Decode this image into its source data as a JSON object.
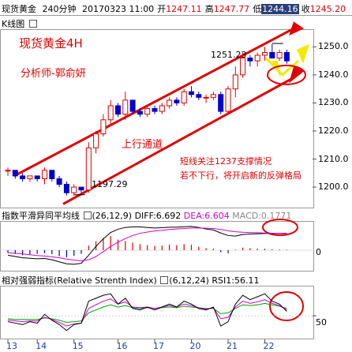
{
  "header": {
    "symbol": "现货黄金",
    "period": "240分钟",
    "datetime": "20170323 11:00",
    "open_label": "开",
    "open": "1247.11",
    "high_label": "高",
    "high": "1247.77",
    "low_label": "低",
    "low": "1244.16",
    "close_label": "收",
    "close": "1245.20"
  },
  "kline": {
    "tab": "K线图",
    "title": "现货黄金4H",
    "author": "分析师-郭俞妍",
    "channel_label": "上行通道",
    "note_line1": "短线关注1237支撑情况",
    "note_line2": "若不下行，将开启新的反弹格局",
    "high_mark": "1251.23",
    "low_mark": "1197.29",
    "price_labels": [
      "1250.0",
      "1240.0",
      "1230.0",
      "1220.0",
      "1210.0",
      "1200.0"
    ]
  },
  "macd": {
    "title": "指数平滑异同平均线",
    "params": "(26,12,9)",
    "diff": "DIFF:6.692",
    "dea": "DEA:6.604",
    "macd": "MACD:0.1771",
    "zero": "0"
  },
  "rsi": {
    "title": "相对强弱指标(Relative Strenth Index)",
    "params": "(6,12,24)",
    "rsi1": "RSI1:56.11",
    "level": "50"
  },
  "dates": [
    "13",
    "14",
    "15",
    "16",
    "17",
    "20",
    "21",
    "22"
  ],
  "colors": {
    "up": "#e00000",
    "down": "#0000c8",
    "dea": "#d000d0"
  },
  "chart_data": {
    "type": "candlestick",
    "title": "现货黄金4H",
    "period": "240分钟",
    "ylim": [
      1193,
      1256
    ],
    "x_dates": [
      "13",
      "14",
      "15",
      "16",
      "17",
      "20",
      "21",
      "22"
    ],
    "candles": [
      [
        1206,
        1207,
        1204,
        1206
      ],
      [
        1206,
        1206,
        1203,
        1204
      ],
      [
        1204,
        1205,
        1202,
        1203
      ],
      [
        1203,
        1204,
        1202,
        1204
      ],
      [
        1204,
        1204,
        1202,
        1203
      ],
      [
        1203,
        1207,
        1201,
        1206
      ],
      [
        1206,
        1206,
        1202,
        1203
      ],
      [
        1203,
        1204,
        1200,
        1201
      ],
      [
        1201,
        1202,
        1197,
        1198
      ],
      [
        1198,
        1201,
        1197,
        1200
      ],
      [
        1200,
        1200,
        1198,
        1199
      ],
      [
        1199,
        1216,
        1198,
        1214
      ],
      [
        1214,
        1220,
        1212,
        1219
      ],
      [
        1219,
        1226,
        1218,
        1224
      ],
      [
        1224,
        1231,
        1222,
        1229
      ],
      [
        1229,
        1230,
        1225,
        1226
      ],
      [
        1226,
        1234,
        1224,
        1231
      ],
      [
        1231,
        1231,
        1226,
        1227
      ],
      [
        1227,
        1228,
        1225,
        1226
      ],
      [
        1226,
        1229,
        1225,
        1228
      ],
      [
        1228,
        1229,
        1226,
        1227
      ],
      [
        1227,
        1230,
        1226,
        1229
      ],
      [
        1229,
        1232,
        1228,
        1231
      ],
      [
        1231,
        1232,
        1229,
        1230
      ],
      [
        1230,
        1235,
        1229,
        1234
      ],
      [
        1234,
        1236,
        1232,
        1233
      ],
      [
        1233,
        1234,
        1231,
        1232
      ],
      [
        1232,
        1233,
        1230,
        1232
      ],
      [
        1232,
        1234,
        1231,
        1233
      ],
      [
        1233,
        1234,
        1226,
        1227
      ],
      [
        1227,
        1236,
        1226,
        1235
      ],
      [
        1235,
        1243,
        1232,
        1240
      ],
      [
        1240,
        1248,
        1239,
        1246
      ],
      [
        1246,
        1247,
        1243,
        1245
      ],
      [
        1245,
        1248,
        1243,
        1247
      ],
      [
        1247,
        1250,
        1245,
        1248
      ],
      [
        1248,
        1251,
        1246,
        1246
      ],
      [
        1246,
        1249,
        1245,
        1248
      ],
      [
        1248,
        1249,
        1244,
        1245
      ]
    ],
    "macd_hist": [
      -1,
      -1.5,
      -2,
      -1.8,
      -1.4,
      -1.2,
      -1.6,
      -2.4,
      -2.8,
      -2.2,
      -1.4,
      1.8,
      3.6,
      4.8,
      5.6,
      4.2,
      3.6,
      3.0,
      2.4,
      2.0,
      1.6,
      1.8,
      2.2,
      2.0,
      2.4,
      2.2,
      1.4,
      0.8,
      0.6,
      -0.8,
      -1.2,
      0.2,
      1.0,
      0.8,
      0.6,
      0.6,
      0.4,
      0.3,
      0.2
    ],
    "diff": [
      -2,
      -2.5,
      -3,
      -3.2,
      -3.4,
      -3.3,
      -3.8,
      -4.6,
      -5.4,
      -5.6,
      -5.2,
      -2.0,
      1.5,
      4.5,
      7.0,
      8.3,
      9.0,
      9.2,
      9.2,
      9.0,
      8.8,
      8.9,
      9.1,
      9.1,
      9.3,
      9.4,
      9.0,
      8.4,
      8.0,
      6.8,
      5.8,
      5.6,
      6.2,
      6.4,
      6.5,
      6.6,
      6.6,
      6.7,
      6.692
    ],
    "dea": [
      -1,
      -1.2,
      -1.5,
      -1.8,
      -2.1,
      -2.3,
      -2.6,
      -3.0,
      -3.5,
      -3.9,
      -4.2,
      -3.8,
      -2.5,
      -0.6,
      1.5,
      3.2,
      4.6,
      5.8,
      6.7,
      7.2,
      7.6,
      7.9,
      8.2,
      8.4,
      8.6,
      8.8,
      8.8,
      8.7,
      8.6,
      8.2,
      7.7,
      7.3,
      7.1,
      7.0,
      6.9,
      6.8,
      6.7,
      6.65,
      6.604
    ],
    "rsi6": [
      42,
      40,
      38,
      42,
      40,
      52,
      44,
      38,
      30,
      38,
      40,
      70,
      74,
      78,
      80,
      66,
      74,
      60,
      58,
      62,
      58,
      62,
      66,
      62,
      70,
      66,
      60,
      58,
      62,
      36,
      42,
      66,
      78,
      72,
      76,
      80,
      70,
      66,
      56
    ],
    "rsi12": [
      44,
      43,
      42,
      43,
      43,
      48,
      45,
      41,
      36,
      39,
      40,
      60,
      65,
      70,
      73,
      66,
      69,
      62,
      61,
      62,
      60,
      62,
      64,
      62,
      66,
      64,
      61,
      59,
      61,
      46,
      48,
      62,
      70,
      67,
      69,
      72,
      67,
      64,
      58
    ],
    "rsi24": [
      46,
      45,
      45,
      45,
      45,
      47,
      46,
      44,
      41,
      42,
      43,
      54,
      58,
      62,
      65,
      62,
      64,
      61,
      60,
      61,
      60,
      61,
      62,
      61,
      63,
      62,
      61,
      60,
      60,
      53,
      54,
      60,
      65,
      64,
      65,
      67,
      65,
      63,
      60
    ]
  }
}
